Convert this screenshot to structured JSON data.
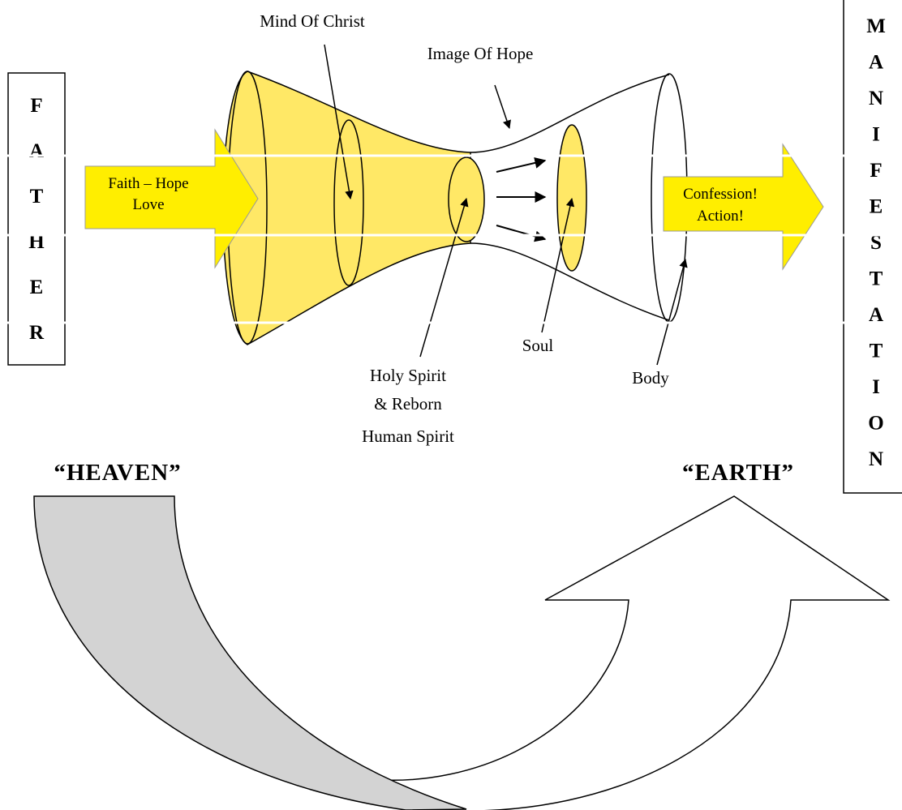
{
  "left_box": {
    "letters": [
      "F",
      "A",
      "T",
      "H",
      "E",
      "R"
    ]
  },
  "right_box": {
    "letters": [
      "M",
      "A",
      "N",
      "I",
      "F",
      "E",
      "S",
      "T",
      "A",
      "T",
      "I",
      "O",
      "N"
    ]
  },
  "input_arrow": {
    "lines": [
      "Faith – Hope",
      "Love"
    ]
  },
  "output_arrow": {
    "lines": [
      "Confession!",
      "Action!"
    ]
  },
  "labels": {
    "mind_of_christ": "Mind Of Christ",
    "image_of_hope": "Image Of Hope",
    "holy_spirit": [
      "Holy Spirit",
      "& Reborn",
      "Human Spirit"
    ],
    "soul": "Soul",
    "body": "Body"
  },
  "heaven": "“HEAVEN”",
  "earth": "“EARTH”"
}
